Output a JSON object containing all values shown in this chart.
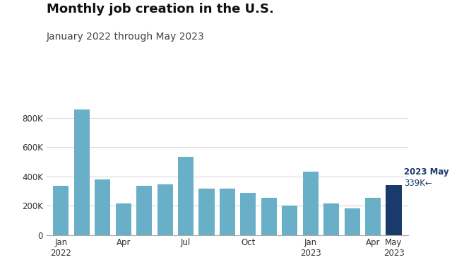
{
  "title": "Monthly job creation in the U.S.",
  "subtitle": "January 2022 through May 2023",
  "tick_labels": [
    "Jan\n2022",
    "Apr",
    "Jul",
    "Oct",
    "Jan\n2023",
    "Apr",
    "May\n2023"
  ],
  "tick_positions": [
    0,
    3,
    6,
    9,
    12,
    15,
    16
  ],
  "values": [
    335000,
    860000,
    380000,
    215000,
    335000,
    345000,
    537000,
    315000,
    315000,
    290000,
    255000,
    200000,
    435000,
    215000,
    180000,
    255000,
    339000
  ],
  "bar_colors": [
    "#6aafc8",
    "#6aafc8",
    "#6aafc8",
    "#6aafc8",
    "#6aafc8",
    "#6aafc8",
    "#6aafc8",
    "#6aafc8",
    "#6aafc8",
    "#6aafc8",
    "#6aafc8",
    "#6aafc8",
    "#6aafc8",
    "#6aafc8",
    "#6aafc8",
    "#6aafc8",
    "#1a3a6b"
  ],
  "highlight_color": "#1a3a6b",
  "annotation_label": "2023 May",
  "annotation_value": "339K←",
  "ylim": [
    0,
    950000
  ],
  "yticks": [
    0,
    200000,
    400000,
    600000,
    800000
  ],
  "background_color": "#ffffff",
  "grid_color": "#cccccc",
  "title_fontsize": 13,
  "subtitle_fontsize": 10
}
